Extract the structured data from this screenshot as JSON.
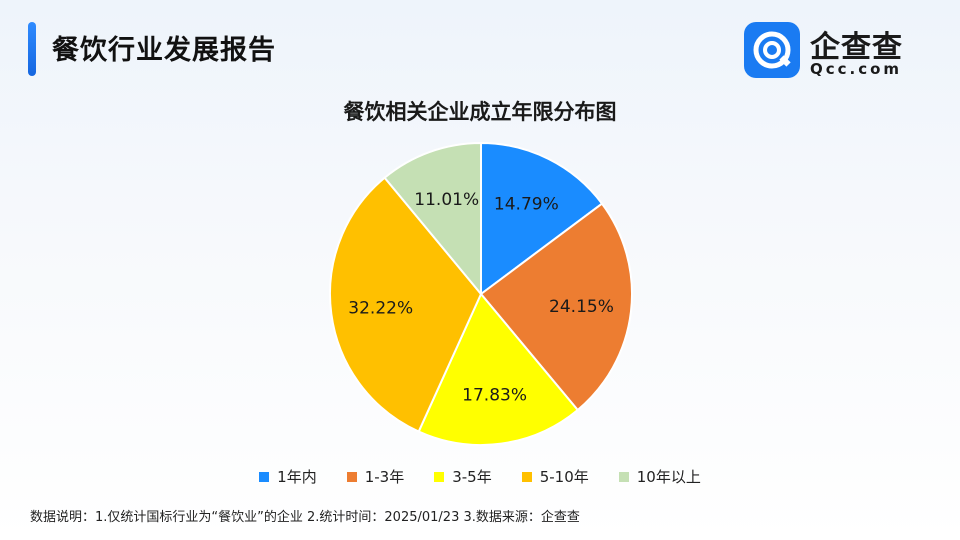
{
  "header": {
    "title": "餐饮行业发展报告",
    "logo_name": "企查查",
    "logo_domain": "Qcc.com",
    "accent": "#1a7bf2"
  },
  "chart_data": {
    "type": "pie",
    "title": "餐饮相关企业成立年限分布图",
    "categories": [
      "1年内",
      "1-3年",
      "3-5年",
      "5-10年",
      "10年以上"
    ],
    "values": [
      14.79,
      24.15,
      17.83,
      32.22,
      11.01
    ],
    "labels": [
      "14.79%",
      "24.15%",
      "17.83%",
      "32.22%",
      "11.01%"
    ],
    "colors": [
      "#1a8cff",
      "#ed7d31",
      "#ffff00",
      "#ffc000",
      "#c5e0b4"
    ],
    "legend": "bottom"
  },
  "footnote": "数据说明：1.仅统计国标行业为“餐饮业”的企业   2.统计时间：2025/01/23    3.数据来源：企查查"
}
